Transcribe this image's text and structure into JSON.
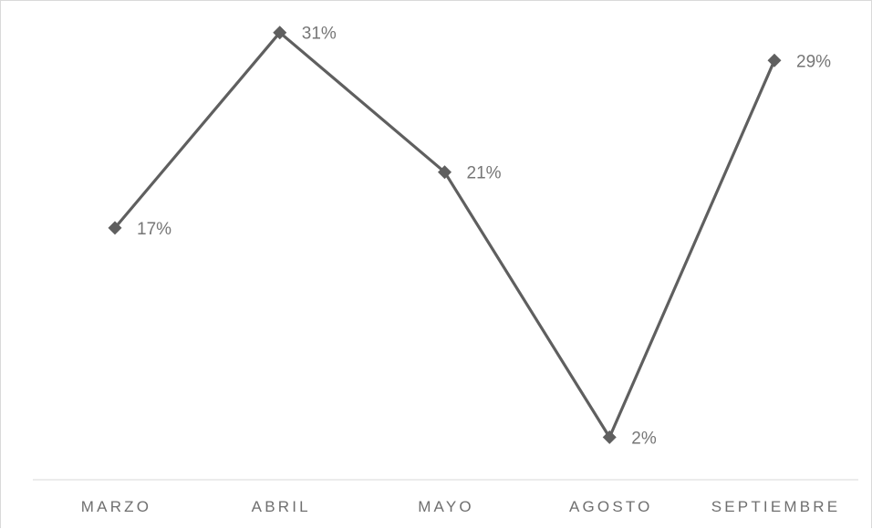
{
  "chart_data": {
    "type": "line",
    "categories": [
      "MARZO",
      "ABRIL",
      "MAYO",
      "AGOSTO",
      "SEPTIEMBRE"
    ],
    "series": [
      {
        "values": [
          17,
          31,
          21,
          2,
          29
        ],
        "data_labels": [
          "17%",
          "31%",
          "21%",
          "2%",
          "29%"
        ],
        "color": "#5f5f5f",
        "marker": "diamond"
      }
    ],
    "title": "",
    "xlabel": "",
    "ylabel": "",
    "ylim": [
      0,
      35
    ],
    "grid": false,
    "legend": "none",
    "axis_color": "#d9d9d9"
  }
}
